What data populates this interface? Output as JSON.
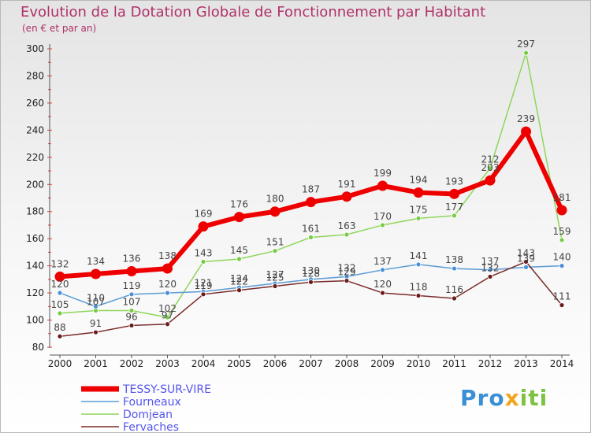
{
  "chart_data": {
    "type": "line",
    "title": "Evolution de la Dotation Globale de Fonctionnement par Habitant",
    "subtitle": "(en € et par an)",
    "xlabel": "",
    "ylabel": "",
    "ylim": [
      80,
      300
    ],
    "yticks": [
      80,
      100,
      120,
      140,
      160,
      180,
      200,
      220,
      240,
      260,
      280,
      300
    ],
    "categories": [
      "2000",
      "2001",
      "2002",
      "2003",
      "2004",
      "2005",
      "2006",
      "2007",
      "2008",
      "2009",
      "2010",
      "2011",
      "2012",
      "2013",
      "2014"
    ],
    "grid": false,
    "legend_position": "bottom-left",
    "series": [
      {
        "name": "Domjean",
        "color": "#8ed65a",
        "dot": "#77cc44",
        "values": [
          105,
          107,
          107,
          102,
          143,
          145,
          151,
          161,
          163,
          170,
          175,
          177,
          212,
          297,
          159
        ]
      },
      {
        "name": "Fourneaux",
        "color": "#5b9bd5",
        "dot": "#4a90d9",
        "values": [
          120,
          110,
          119,
          120,
          121,
          124,
          127,
          130,
          132,
          137,
          141,
          138,
          137,
          139,
          140
        ]
      },
      {
        "name": "Fervaches",
        "color": "#7a2a2a",
        "dot": "#6b1a1a",
        "values": [
          88,
          91,
          96,
          97,
          119,
          122,
          125,
          128,
          129,
          120,
          118,
          116,
          132,
          143,
          111
        ]
      },
      {
        "name": "TESSY-SUR-VIRE",
        "color": "#ee0000",
        "dot": "#ee0000",
        "values": [
          132,
          134,
          136,
          138,
          169,
          176,
          180,
          187,
          191,
          199,
          194,
          193,
          203,
          239,
          181
        ]
      }
    ],
    "legend": [
      "TESSY-SUR-VIRE",
      "Fourneaux",
      "Domjean",
      "Fervaches"
    ]
  },
  "brand": {
    "part1": "Pro",
    "part2": "x",
    "part3": "iti"
  }
}
